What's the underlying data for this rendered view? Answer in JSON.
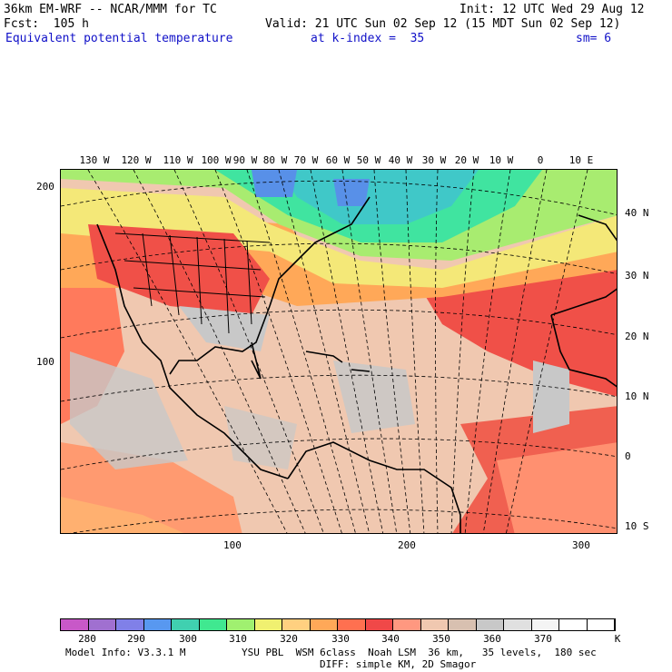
{
  "header": {
    "model_line": "36km EM-WRF -- NCAR/MMM for TC",
    "init_line": "Init: 12 UTC Wed 29 Aug 12",
    "fcst_line": "Fcst:  105 h",
    "valid_line": "Valid: 21 UTC Sun 02 Sep 12 (15 MDT Sun 02 Sep 12)",
    "field_name": "Equivalent potential temperature",
    "level": "at k-index =  35",
    "smoothing": "sm= 6"
  },
  "map": {
    "longitude_labels": [
      "130 W",
      "120 W",
      "110 W",
      "100 W",
      "90 W",
      "80 W",
      "70 W",
      "60 W",
      "50 W",
      "40 W",
      "30 W",
      "20 W",
      "10 W",
      "0",
      "10 E"
    ],
    "latitude_labels": [
      "40 N",
      "30 N",
      "20 N",
      "10 N",
      "0",
      "10 S"
    ],
    "grid_y_labels": [
      "200",
      "100"
    ],
    "grid_x_labels": [
      "100",
      "200",
      "300"
    ],
    "field_colors": {
      "cold": "#30e0a0",
      "mid": "#ffff80",
      "warm": "#ffa060",
      "hot": "#ff6050",
      "neutral": "#e8c8b0",
      "gray": "#c8c8c8"
    }
  },
  "colorbar": {
    "labels": [
      "280",
      "290",
      "300",
      "310",
      "320",
      "330",
      "340",
      "350",
      "360",
      "370"
    ],
    "unit": "K",
    "colors": [
      "#c858c8",
      "#a070d0",
      "#8080e8",
      "#5898f0",
      "#40d0b0",
      "#40e890",
      "#a0f070",
      "#f0f070",
      "#ffd080",
      "#ffa858",
      "#ff7050",
      "#f04848",
      "#ff9880",
      "#f0c8b0",
      "#d8c0b0",
      "#c8c8c8",
      "#e0e0e0",
      "#f4f4f4",
      "#ffffff",
      "#ffffff"
    ]
  },
  "footer": {
    "model_info": "Model Info: V3.3.1 M",
    "physics": "YSU PBL  WSM 6class  Noah LSM  36 km,   35 levels,  180 sec",
    "diff": "DIFF: simple KM, 2D Smagor"
  }
}
